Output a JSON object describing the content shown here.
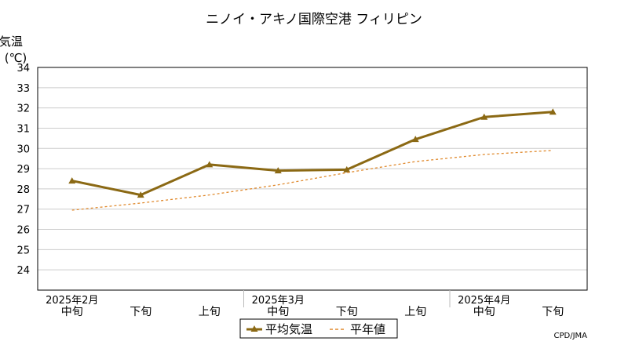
{
  "chart_data": {
    "type": "line",
    "title": "ニノイ・アキノ国際空港 フィリピン",
    "ylabel_line1": "気温",
    "ylabel_line2": "(℃)",
    "ylim": [
      23,
      34
    ],
    "yticks": [
      24,
      25,
      26,
      27,
      28,
      29,
      30,
      31,
      32,
      33,
      34
    ],
    "x_tick_labels": [
      "中旬",
      "下旬",
      "上旬",
      "中旬",
      "下旬",
      "上旬",
      "中旬",
      "下旬"
    ],
    "month_labels": [
      {
        "label": "2025年2月",
        "at_index": 0
      },
      {
        "label": "2025年3月",
        "at_index": 3
      },
      {
        "label": "2025年4月",
        "at_index": 6
      }
    ],
    "series": [
      {
        "name": "平均気温",
        "style": "solid",
        "marker": "triangle",
        "color": "#8b6914",
        "values": [
          28.4,
          27.7,
          29.2,
          28.9,
          28.95,
          30.45,
          31.55,
          31.8
        ]
      },
      {
        "name": "平年値",
        "style": "dashed",
        "marker": "none",
        "color": "#e08a2e",
        "values": [
          26.95,
          27.3,
          27.7,
          28.2,
          28.8,
          29.35,
          29.7,
          29.9
        ]
      }
    ],
    "grid": true,
    "legend_position": "bottom-center",
    "credit": "CPD/JMA"
  }
}
